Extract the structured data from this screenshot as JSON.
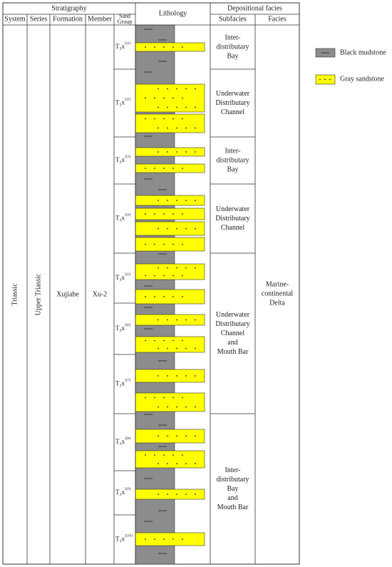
{
  "header": {
    "stratigraphy": "Stratigraphy",
    "lithology": "Lithology",
    "depositional_facies": "Depositional facies",
    "columns": {
      "system": "System",
      "series": "Series",
      "formation": "Formation",
      "member": "Member",
      "sand_group": [
        "Sand",
        "Group"
      ],
      "subfacies": "Subfacies",
      "facies": "Facies"
    }
  },
  "body": {
    "system": "Triassic",
    "series": "Upper Triassic",
    "formation": "Xujiahe",
    "member": "Xu-2",
    "sand_groups": [
      {
        "base": "T",
        "sub": "3",
        "letter": "x",
        "sup": "2(1)"
      },
      {
        "base": "T",
        "sub": "3",
        "letter": "x",
        "sup": "2(2)"
      },
      {
        "base": "T",
        "sub": "3",
        "letter": "x",
        "sup": "2(3)"
      },
      {
        "base": "T",
        "sub": "3",
        "letter": "x",
        "sup": "2(4)"
      },
      {
        "base": "T",
        "sub": "3",
        "letter": "x",
        "sup": "2(5)"
      },
      {
        "base": "T",
        "sub": "3",
        "letter": "x",
        "sup": "2(6)"
      },
      {
        "base": "T",
        "sub": "3",
        "letter": "x",
        "sup": "2(7)"
      },
      {
        "base": "T",
        "sub": "3",
        "letter": "x",
        "sup": "2(8)"
      },
      {
        "base": "T",
        "sub": "3",
        "letter": "x",
        "sup": "2(9)"
      },
      {
        "base": "T",
        "sub": "3",
        "letter": "x",
        "sup": "2(10)"
      }
    ],
    "subfacies": [
      {
        "lines": [
          "Inter-",
          "distributary",
          "Bay"
        ]
      },
      {
        "lines": [
          "Underwater",
          "Distributary",
          "Channel"
        ]
      },
      {
        "lines": [
          "Inter-",
          "distributary",
          "Bay"
        ]
      },
      {
        "lines": [
          "Underwater",
          "Distributary",
          "Channel"
        ]
      },
      {
        "lines": [
          "Underwater",
          "Distributary",
          "Channel",
          "and",
          "Mouth Bar"
        ]
      },
      {
        "lines": [
          "Inter-",
          "distributary",
          "Bay",
          "and",
          "Mouth Bar"
        ]
      }
    ],
    "facies": {
      "lines": [
        "Marine-",
        "continental",
        "Delta"
      ]
    }
  },
  "legend": {
    "items": [
      "Black mudstone",
      "Gray sandstone"
    ]
  }
}
